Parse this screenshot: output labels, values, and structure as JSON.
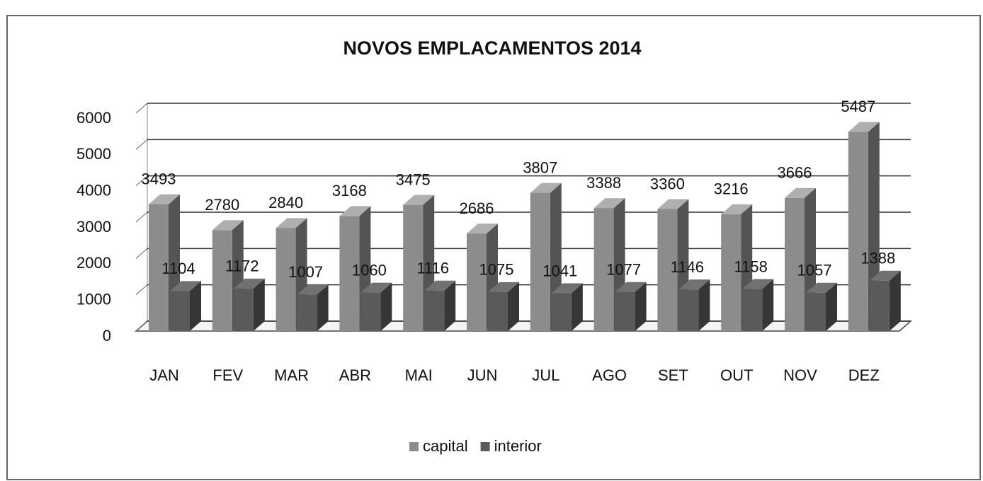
{
  "chart_data": {
    "type": "bar3d",
    "title": "NOVOS EMPLACAMENTOS 2014",
    "categories": [
      "JAN",
      "FEV",
      "MAR",
      "ABR",
      "MAI",
      "JUN",
      "JUL",
      "AGO",
      "SET",
      "OUT",
      "NOV",
      "DEZ"
    ],
    "series": [
      {
        "name": "capital",
        "color": "#8c8c8c",
        "values": [
          3493,
          2780,
          2840,
          3168,
          3475,
          2686,
          3807,
          3388,
          3360,
          3216,
          3666,
          5487
        ]
      },
      {
        "name": "interior",
        "color": "#5a5a5a",
        "values": [
          1104,
          1172,
          1007,
          1060,
          1116,
          1075,
          1041,
          1077,
          1146,
          1158,
          1057,
          1388
        ]
      }
    ],
    "ylim": [
      0,
      6000
    ],
    "yticks": [
      0,
      1000,
      2000,
      3000,
      4000,
      5000,
      6000
    ],
    "grid": true,
    "legend": "bottom"
  }
}
